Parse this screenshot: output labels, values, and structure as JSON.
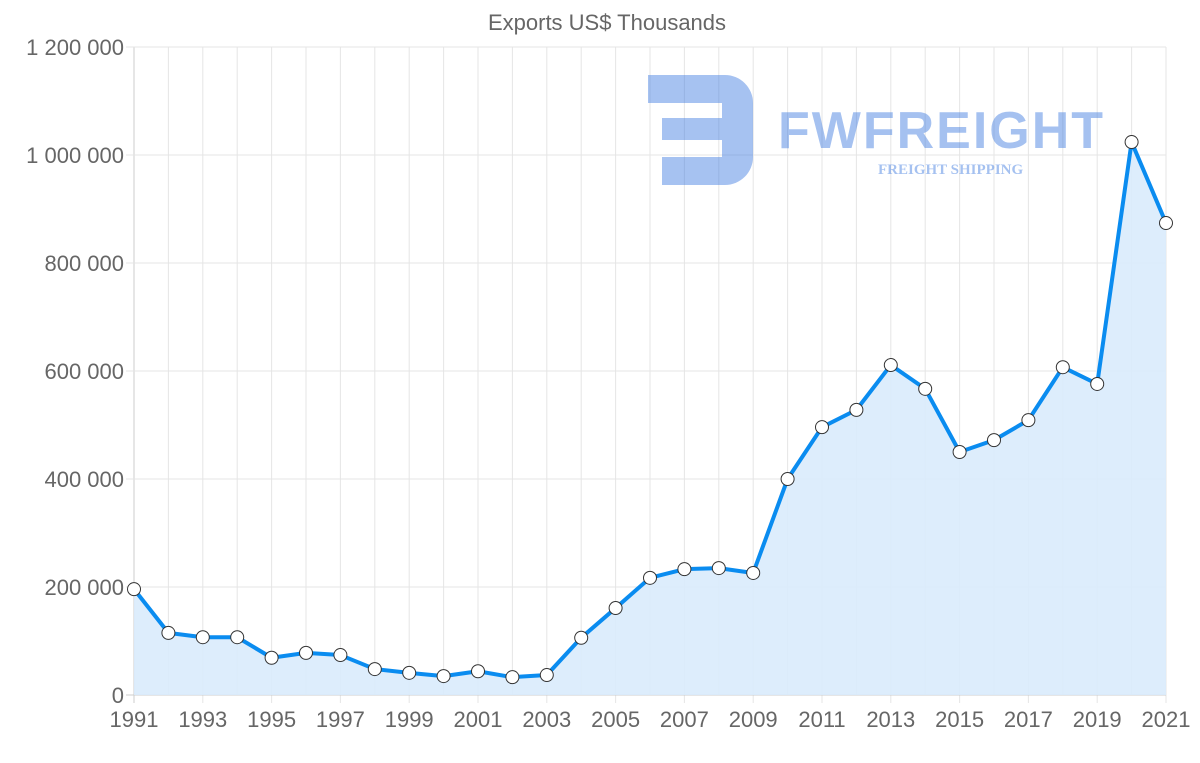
{
  "chart_data": {
    "type": "area",
    "title": "Exports US$ Thousands",
    "xlabel": "",
    "ylabel": "",
    "x": [
      1991,
      1992,
      1993,
      1994,
      1995,
      1996,
      1997,
      1998,
      1999,
      2000,
      2001,
      2002,
      2003,
      2004,
      2005,
      2006,
      2007,
      2008,
      2009,
      2010,
      2011,
      2012,
      2013,
      2014,
      2015,
      2016,
      2017,
      2018,
      2019,
      2020,
      2021
    ],
    "series": [
      {
        "name": "Exports US$ Thousands",
        "values": [
          196000,
          115000,
          107000,
          107000,
          69000,
          78000,
          74000,
          48000,
          41000,
          35000,
          44000,
          33000,
          37000,
          106000,
          161000,
          217000,
          233000,
          235000,
          226000,
          400000,
          496000,
          528000,
          611000,
          567000,
          450000,
          472000,
          509000,
          607000,
          576000,
          1024000,
          874000
        ]
      }
    ],
    "ylim": [
      0,
      1200000
    ],
    "yticks": [
      "0",
      "200 000",
      "400 000",
      "600 000",
      "800 000",
      "1 000 000",
      "1 200 000"
    ],
    "xticks": [
      "1991",
      "1993",
      "1995",
      "1997",
      "1999",
      "2001",
      "2003",
      "2005",
      "2007",
      "2009",
      "2011",
      "2013",
      "2015",
      "2017",
      "2019",
      "2021"
    ],
    "grid": true,
    "colors": {
      "line": "#0a8cf0",
      "fill": "#d9ebfc",
      "grid": "#e5e5e5"
    }
  },
  "watermark": {
    "brand": "FWFREIGHT",
    "tagline": "FREIGHT SHIPPING"
  }
}
